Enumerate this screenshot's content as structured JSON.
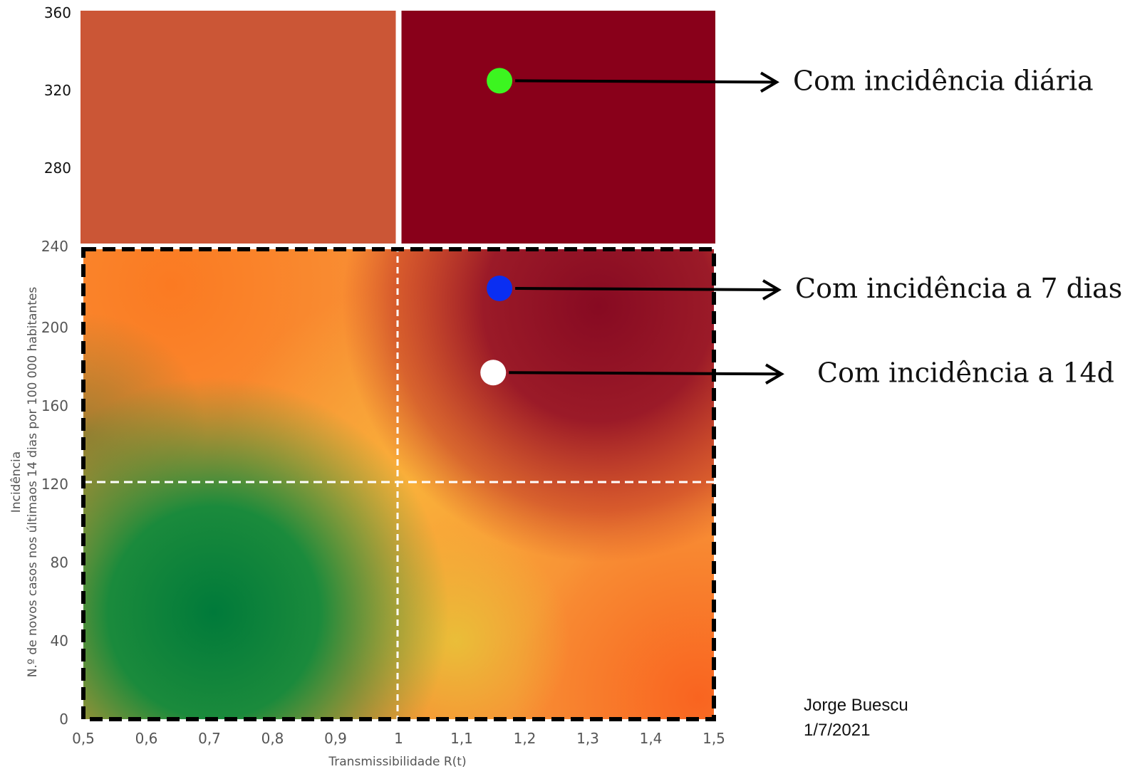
{
  "chart_data": {
    "type": "scatter",
    "x_axis": {
      "label": "Transmissibilidade R(t)",
      "range": [
        0.5,
        1.5
      ],
      "ticks": [
        "0,5",
        "0,6",
        "0,7",
        "0,8",
        "0,9",
        "1",
        "1,1",
        "1,2",
        "1,3",
        "1,4",
        "1,5"
      ],
      "tick_values": [
        0.5,
        0.6,
        0.7,
        0.8,
        0.9,
        1.0,
        1.1,
        1.2,
        1.3,
        1.4,
        1.5
      ]
    },
    "y_axis": {
      "label_line1": "Incidência",
      "label_line2": "N.º de novos casos nos últimaos 14 dias por 100 000 habitantes",
      "range": [
        0,
        360
      ],
      "ticks_lower": [
        "0",
        "40",
        "80",
        "120",
        "160",
        "200",
        "240"
      ],
      "ticks_lower_values": [
        0,
        40,
        80,
        120,
        160,
        200,
        240
      ],
      "ticks_upper": [
        "240",
        "280",
        "320",
        "360"
      ],
      "ticks_upper_values": [
        240,
        280,
        320,
        360
      ]
    },
    "thresholds": {
      "x": 1.0,
      "y": 120
    },
    "regions_upper": [
      {
        "x": [
          0.5,
          1.0
        ],
        "y": [
          240,
          360
        ],
        "color": "#cb5636"
      },
      {
        "x": [
          1.0,
          1.5
        ],
        "y": [
          240,
          360
        ],
        "color": "#89001a"
      }
    ],
    "points": [
      {
        "x": 1.16,
        "y": 325,
        "color": "#3cf520",
        "label": "Com incidência diária"
      },
      {
        "x": 1.16,
        "y": 220,
        "color": "#0a2ef2",
        "label": "Com incidência a 7 dias"
      },
      {
        "x": 1.15,
        "y": 177,
        "color": "#ffffff",
        "label": "Com incidência a 14d"
      }
    ],
    "author": "Jorge Buescu",
    "date": "1/7/2021"
  }
}
